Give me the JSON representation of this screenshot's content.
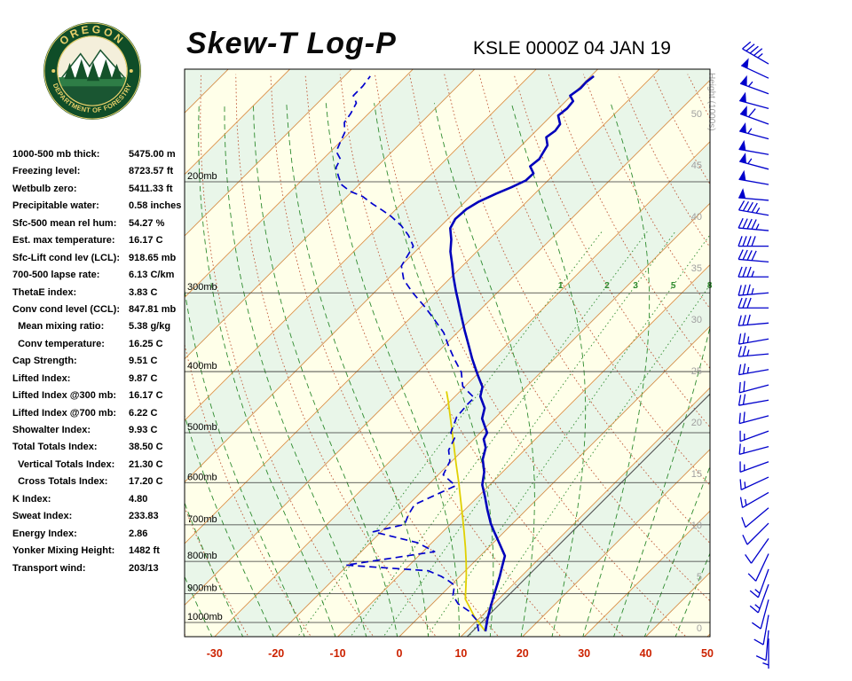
{
  "header": {
    "title": "Skew-T Log-P",
    "station": "KSLE 0000Z 04 JAN 19"
  },
  "logo": {
    "arc_top": "OREGON",
    "arc_bottom": "DEPARTMENT OF FORESTRY"
  },
  "indices": [
    {
      "label": "1000-500 mb thick:",
      "value": "5475.00 m"
    },
    {
      "label": "Freezing level:",
      "value": "8723.57 ft"
    },
    {
      "label": "Wetbulb zero:",
      "value": "5411.33 ft"
    },
    {
      "label": "Precipitable water:",
      "value": "0.58 inches"
    },
    {
      "label": "Sfc-500 mean rel hum:",
      "value": "54.27 %"
    },
    {
      "label": "Est. max temperature:",
      "value": "16.17 C"
    },
    {
      "label": "Sfc-Lift cond lev (LCL):",
      "value": "918.65 mb"
    },
    {
      "label": "700-500 lapse rate:",
      "value": "6.13 C/km"
    },
    {
      "label": "ThetaE index:",
      "value": "3.83 C"
    },
    {
      "label": "Conv cond level (CCL):",
      "value": "847.81 mb"
    },
    {
      "label": "  Mean mixing ratio:",
      "value": "5.38 g/kg"
    },
    {
      "label": "  Conv temperature:",
      "value": "16.25 C"
    },
    {
      "label": "Cap Strength:",
      "value": "9.51 C"
    },
    {
      "label": "Lifted Index:",
      "value": "9.87 C"
    },
    {
      "label": "Lifted Index @300 mb:",
      "value": "16.17 C"
    },
    {
      "label": "Lifted Index @700 mb:",
      "value": "6.22 C"
    },
    {
      "label": "Showalter Index:",
      "value": "9.93 C"
    },
    {
      "label": "Total Totals Index:",
      "value": "38.50 C"
    },
    {
      "label": "  Vertical Totals Index:",
      "value": "21.30 C"
    },
    {
      "label": "  Cross Totals Index:",
      "value": "17.20 C"
    },
    {
      "label": "K Index:",
      "value": "4.80"
    },
    {
      "label": "Sweat Index:",
      "value": "233.83"
    },
    {
      "label": "Energy Index:",
      "value": "2.86"
    },
    {
      "label": "Yonker Mixing Height:",
      "value": "1482 ft"
    },
    {
      "label": "Transport wind:",
      "value": "203/13"
    }
  ],
  "chart_data": {
    "type": "skewt",
    "title": "Skew-T Log-P",
    "station_time": "KSLE 0000Z 04 JAN 19",
    "pressure_labels": [
      "200mb",
      "300mb",
      "400mb",
      "500mb",
      "600mb",
      "700mb",
      "800mb",
      "900mb",
      "1000mb"
    ],
    "pressure_lines": [
      200,
      300,
      400,
      500,
      600,
      700,
      800,
      900,
      1000
    ],
    "temp_ticks": [
      -30,
      -20,
      -10,
      0,
      10,
      20,
      30,
      40,
      50
    ],
    "height_ticks": [
      0,
      5,
      10,
      15,
      20,
      25,
      30,
      35,
      40,
      45,
      50
    ],
    "height_axis_label": "Height (1000s)",
    "mixing_ratio_values": [
      1,
      2,
      3,
      5,
      8
    ],
    "mixing_ratio_label_pressure": 292,
    "dry_adiabats": {
      "min": 235,
      "max": 415,
      "step": 10
    },
    "moist_adiabat_starts_c": [
      -35,
      -30,
      -25,
      -20,
      -15,
      -10,
      -5,
      0,
      5,
      10,
      15,
      20,
      25,
      30,
      35,
      40,
      45
    ],
    "aux_isotherm_t": 11,
    "temperature_profile": [
      [
        1033,
        13.1
      ],
      [
        987,
        11.4
      ],
      [
        937,
        9.7
      ],
      [
        890,
        8.1
      ],
      [
        845,
        6.5
      ],
      [
        813,
        5.2
      ],
      [
        784,
        4.0
      ],
      [
        747,
        0.9
      ],
      [
        714,
        -2.0
      ],
      [
        696,
        -3.6
      ],
      [
        663,
        -6.3
      ],
      [
        631,
        -8.9
      ],
      [
        605,
        -11.2
      ],
      [
        577,
        -13.0
      ],
      [
        551,
        -15.3
      ],
      [
        528,
        -16.7
      ],
      [
        512,
        -18.4
      ],
      [
        500,
        -18.9
      ],
      [
        475,
        -22.0
      ],
      [
        457,
        -23.3
      ],
      [
        438,
        -25.9
      ],
      [
        423,
        -27.1
      ],
      [
        405,
        -29.8
      ],
      [
        382,
        -33.3
      ],
      [
        364,
        -36.0
      ],
      [
        344,
        -39.2
      ],
      [
        322,
        -42.8
      ],
      [
        308,
        -45.2
      ],
      [
        298,
        -47.0
      ],
      [
        283,
        -49.7
      ],
      [
        270,
        -52.0
      ],
      [
        258,
        -54.3
      ],
      [
        247,
        -56.1
      ],
      [
        237,
        -58.1
      ],
      [
        229,
        -58.8
      ],
      [
        221,
        -58.6
      ],
      [
        215,
        -57.8
      ],
      [
        209,
        -56.3
      ],
      [
        204,
        -54.8
      ],
      [
        199,
        -53.6
      ],
      [
        194,
        -53.5
      ],
      [
        189,
        -55.2
      ],
      [
        184,
        -54.9
      ],
      [
        180,
        -55.3
      ],
      [
        175,
        -55.8
      ],
      [
        170,
        -57.3
      ],
      [
        166,
        -56.9
      ],
      [
        162,
        -57.2
      ],
      [
        157,
        -58.9
      ],
      [
        153,
        -58.6
      ],
      [
        149,
        -58.8
      ],
      [
        146,
        -60.2
      ],
      [
        142,
        -59.7
      ],
      [
        139,
        -59.8
      ],
      [
        136,
        -59.5
      ]
    ],
    "dewpoint_profile": [
      [
        1033,
        12.0
      ],
      [
        992,
        9.9
      ],
      [
        959,
        7.1
      ],
      [
        934,
        4.2
      ],
      [
        906,
        2.0
      ],
      [
        873,
        0.6
      ],
      [
        858,
        -1.2
      ],
      [
        845,
        -3.0
      ],
      [
        828,
        -6.0
      ],
      [
        811,
        -20.3
      ],
      [
        772,
        -8.1
      ],
      [
        747,
        -12.4
      ],
      [
        718,
        -21.3
      ],
      [
        699,
        -17.4
      ],
      [
        673,
        -18.4
      ],
      [
        650,
        -19.0
      ],
      [
        607,
        -15.4
      ],
      [
        583,
        -19.2
      ],
      [
        555,
        -20.3
      ],
      [
        533,
        -22.3
      ],
      [
        510,
        -23.3
      ],
      [
        500,
        -24.8
      ],
      [
        472,
        -26.4
      ],
      [
        450,
        -26.7
      ],
      [
        440,
        -26.7
      ],
      [
        422,
        -30.4
      ],
      [
        401,
        -32.9
      ],
      [
        382,
        -36.2
      ],
      [
        364,
        -39.3
      ],
      [
        347,
        -42.2
      ],
      [
        331,
        -45.8
      ],
      [
        316,
        -49.4
      ],
      [
        300,
        -53.7
      ],
      [
        286,
        -57.3
      ],
      [
        272,
        -59.9
      ],
      [
        263,
        -60.5
      ],
      [
        253,
        -61.2
      ],
      [
        243,
        -63.8
      ],
      [
        235,
        -66.4
      ],
      [
        227,
        -69.6
      ],
      [
        222,
        -72.0
      ],
      [
        217,
        -74.6
      ],
      [
        211,
        -77.5
      ],
      [
        207,
        -80.4
      ],
      [
        202,
        -82.9
      ],
      [
        196,
        -84.7
      ],
      [
        190,
        -86.5
      ],
      [
        184,
        -87.2
      ],
      [
        179,
        -89.1
      ],
      [
        172,
        -90.1
      ],
      [
        167,
        -90.8
      ],
      [
        161,
        -92.5
      ],
      [
        156,
        -92.9
      ],
      [
        150,
        -93.7
      ],
      [
        146,
        -95.4
      ],
      [
        141,
        -95.4
      ],
      [
        136,
        -95.8
      ]
    ],
    "parcel_profile": [
      [
        1033,
        13.1
      ],
      [
        980,
        9.0
      ],
      [
        940,
        6.2
      ],
      [
        918,
        4.6
      ],
      [
        880,
        2.8
      ],
      [
        840,
        0.8
      ],
      [
        800,
        -1.4
      ],
      [
        760,
        -3.8
      ],
      [
        720,
        -6.4
      ],
      [
        680,
        -9.2
      ],
      [
        640,
        -12.2
      ],
      [
        600,
        -15.4
      ],
      [
        560,
        -18.9
      ],
      [
        520,
        -22.6
      ],
      [
        480,
        -26.6
      ],
      [
        445,
        -30.4
      ],
      [
        430,
        -32.2
      ]
    ],
    "wind_barbs": [
      [
        130,
        300,
        45
      ],
      [
        137,
        295,
        50
      ],
      [
        145,
        290,
        55
      ],
      [
        153,
        285,
        50
      ],
      [
        162,
        290,
        60
      ],
      [
        171,
        285,
        55
      ],
      [
        181,
        280,
        50
      ],
      [
        191,
        285,
        55
      ],
      [
        202,
        280,
        50
      ],
      [
        214,
        275,
        50
      ],
      [
        226,
        280,
        45
      ],
      [
        239,
        275,
        45
      ],
      [
        253,
        270,
        40
      ],
      [
        268,
        275,
        40
      ],
      [
        283,
        270,
        35
      ],
      [
        300,
        265,
        35
      ],
      [
        317,
        270,
        30
      ],
      [
        335,
        265,
        30
      ],
      [
        355,
        260,
        25
      ],
      [
        375,
        265,
        25
      ],
      [
        397,
        260,
        25
      ],
      [
        420,
        255,
        20
      ],
      [
        444,
        260,
        20
      ],
      [
        470,
        255,
        20
      ],
      [
        497,
        250,
        15
      ],
      [
        526,
        255,
        15
      ],
      [
        556,
        250,
        15
      ],
      [
        588,
        245,
        15
      ],
      [
        622,
        240,
        15
      ],
      [
        658,
        230,
        10
      ],
      [
        696,
        225,
        10
      ],
      [
        736,
        215,
        10
      ],
      [
        778,
        205,
        10
      ],
      [
        823,
        200,
        13
      ],
      [
        870,
        200,
        13
      ],
      [
        920,
        195,
        10
      ],
      [
        973,
        190,
        10
      ],
      [
        1029,
        185,
        10
      ],
      [
        1060,
        180,
        5
      ]
    ],
    "colors": {
      "temp": "#0000bb",
      "dewpoint": "#0000cc",
      "parcel": "#e0d000",
      "isotherm": "#d89048",
      "dry_adiabat": "#c05a3a",
      "moist_adiabat": "#2e8b2e",
      "mixing_ratio": "#2e8b2e",
      "band_a": "#FFFFE9",
      "band_b": "#E9F6E9",
      "isobar": "#333333",
      "axis_red": "#cc2200",
      "height_gray": "#a0a0a0",
      "barb": "#0000cc",
      "aux": "#555555"
    }
  }
}
